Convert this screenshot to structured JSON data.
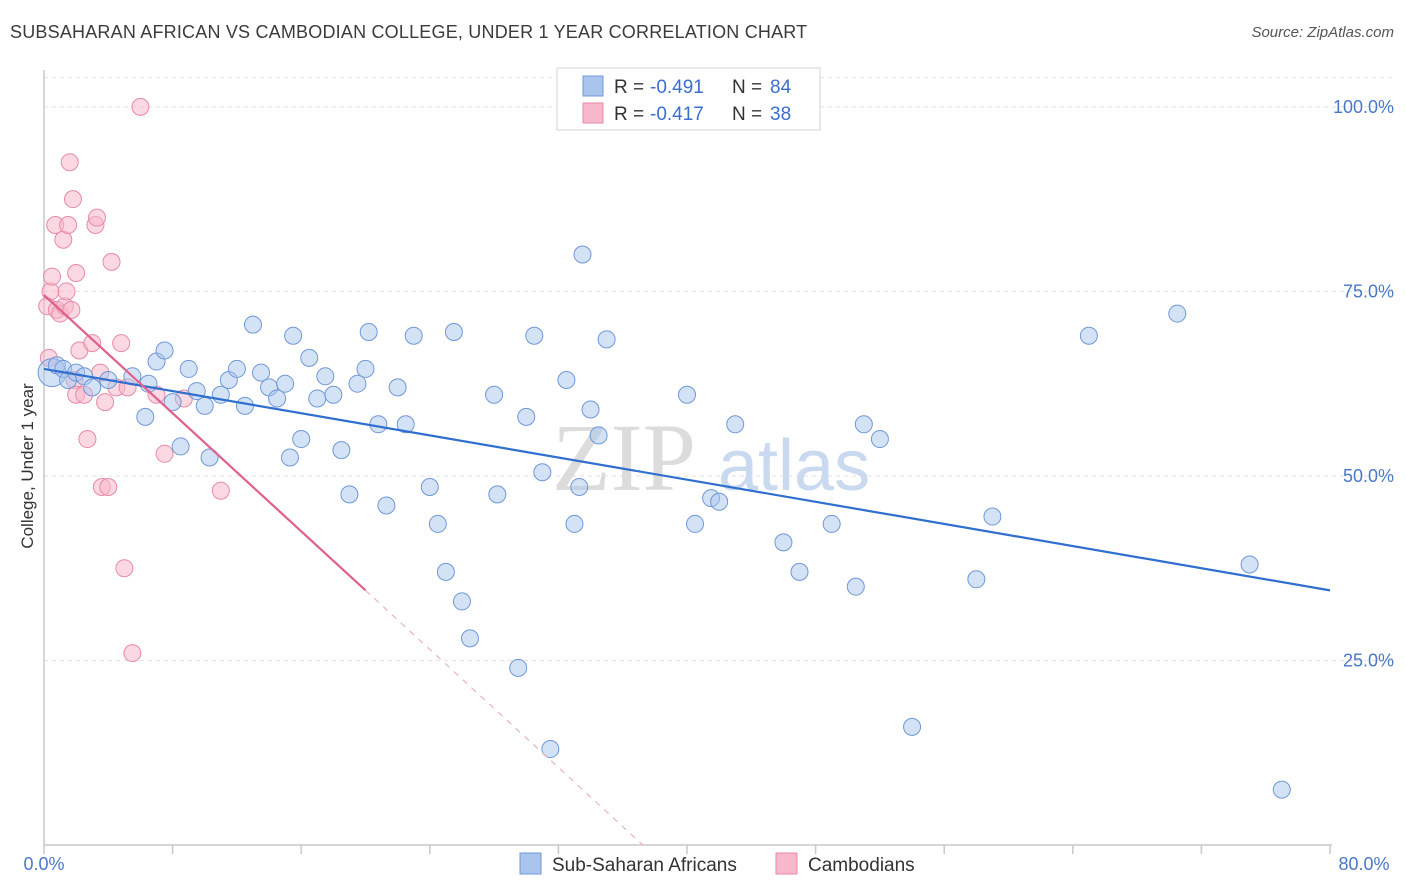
{
  "header": {
    "title": "SUBSAHARAN AFRICAN VS CAMBODIAN COLLEGE, UNDER 1 YEAR CORRELATION CHART",
    "source": "Source: ZipAtlas.com"
  },
  "watermark": {
    "zip": "ZIP",
    "atlas": "atlas"
  },
  "legend": {
    "r_label": "R = ",
    "n_label": "N = ",
    "series": [
      {
        "r": "-0.491",
        "n": "84"
      },
      {
        "r": "-0.417",
        "n": "38"
      }
    ]
  },
  "bottom_legend": [
    "Sub-Saharan Africans",
    "Cambodians"
  ],
  "colors": {
    "blue_fill": "#a9c5ee",
    "blue_stroke": "#6f98d8",
    "blue_line": "#2f6fce",
    "pink_fill": "#f7b8cb",
    "pink_stroke": "#e98aa7",
    "pink_line": "#e0608c",
    "tick_text": "#4a78c8"
  },
  "chart_data": {
    "type": "scatter",
    "title": "SUBSAHARAN AFRICAN VS CAMBODIAN COLLEGE, UNDER 1 YEAR CORRELATION CHART",
    "xlabel": "",
    "ylabel": "College, Under 1 year",
    "xlim": [
      0,
      80
    ],
    "ylim": [
      0,
      105
    ],
    "x_tick_labels": [
      "0.0%",
      "80.0%"
    ],
    "y_ticks": [
      25,
      50,
      75,
      100
    ],
    "y_tick_labels": [
      "25.0%",
      "50.0%",
      "75.0%",
      "100.0%"
    ],
    "grid": true,
    "series": [
      {
        "name": "Sub-Saharan Africans",
        "r": -0.491,
        "n": 84,
        "points": [
          [
            0.5,
            64.0
          ],
          [
            0.8,
            65.0
          ],
          [
            1.2,
            64.5
          ],
          [
            1.5,
            63.0
          ],
          [
            2.0,
            64.0
          ],
          [
            2.5,
            63.5
          ],
          [
            3.0,
            62.0
          ],
          [
            4.0,
            63.0
          ],
          [
            5.5,
            63.5
          ],
          [
            6.5,
            62.5
          ],
          [
            6.3,
            58.0
          ],
          [
            7.0,
            65.5
          ],
          [
            7.5,
            67.0
          ],
          [
            8.0,
            60.0
          ],
          [
            8.5,
            54.0
          ],
          [
            9.0,
            64.5
          ],
          [
            9.5,
            61.5
          ],
          [
            10.0,
            59.5
          ],
          [
            10.3,
            52.5
          ],
          [
            11.0,
            61.0
          ],
          [
            11.5,
            63.0
          ],
          [
            12.0,
            64.5
          ],
          [
            12.5,
            59.5
          ],
          [
            13.0,
            70.5
          ],
          [
            13.5,
            64.0
          ],
          [
            14.0,
            62.0
          ],
          [
            14.5,
            60.5
          ],
          [
            15.0,
            62.5
          ],
          [
            15.3,
            52.5
          ],
          [
            15.5,
            69.0
          ],
          [
            16.0,
            55.0
          ],
          [
            16.5,
            66.0
          ],
          [
            17.0,
            60.5
          ],
          [
            17.5,
            63.5
          ],
          [
            18.0,
            61.0
          ],
          [
            18.5,
            53.5
          ],
          [
            19.0,
            47.5
          ],
          [
            19.5,
            62.5
          ],
          [
            20.0,
            64.5
          ],
          [
            20.2,
            69.5
          ],
          [
            20.8,
            57.0
          ],
          [
            21.3,
            46.0
          ],
          [
            22.0,
            62.0
          ],
          [
            22.5,
            57.0
          ],
          [
            23.0,
            69.0
          ],
          [
            24.0,
            48.5
          ],
          [
            24.5,
            43.5
          ],
          [
            25.0,
            37.0
          ],
          [
            25.5,
            69.5
          ],
          [
            26.0,
            33.0
          ],
          [
            26.5,
            28.0
          ],
          [
            28.0,
            61.0
          ],
          [
            28.2,
            47.5
          ],
          [
            29.5,
            24.0
          ],
          [
            30.0,
            58.0
          ],
          [
            30.5,
            69.0
          ],
          [
            31.0,
            50.5
          ],
          [
            31.5,
            13.0
          ],
          [
            32.5,
            63.0
          ],
          [
            33.0,
            43.5
          ],
          [
            33.3,
            48.5
          ],
          [
            34.0,
            59.0
          ],
          [
            34.5,
            55.5
          ],
          [
            35.0,
            68.5
          ],
          [
            40.0,
            61.0
          ],
          [
            40.5,
            43.5
          ],
          [
            41.5,
            47.0
          ],
          [
            42.0,
            46.5
          ],
          [
            43.0,
            57.0
          ],
          [
            46.0,
            41.0
          ],
          [
            47.0,
            37.0
          ],
          [
            49.0,
            43.5
          ],
          [
            50.5,
            35.0
          ],
          [
            51.0,
            57.0
          ],
          [
            52.0,
            55.0
          ],
          [
            54.0,
            16.0
          ],
          [
            58.0,
            36.0
          ],
          [
            59.0,
            44.5
          ],
          [
            65.0,
            69.0
          ],
          [
            70.5,
            72.0
          ],
          [
            75.0,
            38.0
          ],
          [
            77.0,
            7.5
          ],
          [
            33.5,
            80.0
          ]
        ],
        "trendline": {
          "x": [
            0,
            80
          ],
          "y": [
            64.5,
            34.5
          ]
        }
      },
      {
        "name": "Cambodians",
        "r": -0.417,
        "n": 38,
        "points": [
          [
            0.2,
            73.0
          ],
          [
            0.3,
            66.0
          ],
          [
            0.4,
            75.0
          ],
          [
            0.5,
            77.0
          ],
          [
            0.7,
            84.0
          ],
          [
            0.8,
            72.5
          ],
          [
            1.0,
            72.0
          ],
          [
            1.2,
            82.0
          ],
          [
            1.3,
            73.0
          ],
          [
            1.4,
            75.0
          ],
          [
            1.5,
            84.0
          ],
          [
            1.6,
            92.5
          ],
          [
            1.7,
            72.5
          ],
          [
            1.8,
            87.5
          ],
          [
            1.9,
            63.0
          ],
          [
            2.0,
            61.0
          ],
          [
            2.0,
            77.5
          ],
          [
            2.2,
            67.0
          ],
          [
            2.5,
            61.0
          ],
          [
            2.7,
            55.0
          ],
          [
            3.0,
            68.0
          ],
          [
            3.2,
            84.0
          ],
          [
            3.3,
            85.0
          ],
          [
            3.5,
            64.0
          ],
          [
            3.6,
            48.5
          ],
          [
            3.8,
            60.0
          ],
          [
            4.0,
            48.5
          ],
          [
            4.2,
            79.0
          ],
          [
            4.5,
            62.0
          ],
          [
            4.8,
            68.0
          ],
          [
            5.0,
            37.5
          ],
          [
            5.2,
            62.0
          ],
          [
            5.5,
            26.0
          ],
          [
            6.0,
            100.0
          ],
          [
            7.0,
            61.0
          ],
          [
            7.5,
            53.0
          ],
          [
            8.7,
            60.5
          ],
          [
            11.0,
            48.0
          ]
        ],
        "trendline": {
          "x": [
            0,
            20
          ],
          "y": [
            74.5,
            34.5
          ]
        },
        "trendline_dashed_extension": {
          "x": [
            20,
            40
          ],
          "y": [
            34.5,
            -5.5
          ]
        }
      }
    ]
  }
}
